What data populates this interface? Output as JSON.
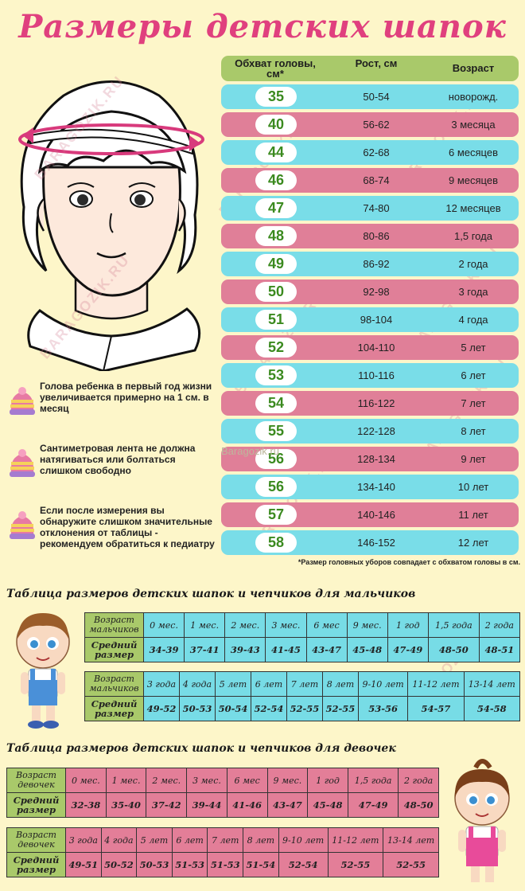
{
  "title": "Размеры детских шапок",
  "main_table": {
    "headers": {
      "girth": "Обхват головы, см*",
      "height": "Рост, см",
      "age": "Возраст"
    },
    "rows": [
      {
        "girth": "35",
        "height": "50-54",
        "age": "новорожд."
      },
      {
        "girth": "40",
        "height": "56-62",
        "age": "3 месяца"
      },
      {
        "girth": "44",
        "height": "62-68",
        "age": "6 месяцев"
      },
      {
        "girth": "46",
        "height": "68-74",
        "age": "9 месяцев"
      },
      {
        "girth": "47",
        "height": "74-80",
        "age": "12 месяцев"
      },
      {
        "girth": "48",
        "height": "80-86",
        "age": "1,5 года"
      },
      {
        "girth": "49",
        "height": "86-92",
        "age": "2 года"
      },
      {
        "girth": "50",
        "height": "92-98",
        "age": "3 года"
      },
      {
        "girth": "51",
        "height": "98-104",
        "age": "4 года"
      },
      {
        "girth": "52",
        "height": "104-110",
        "age": "5 лет"
      },
      {
        "girth": "53",
        "height": "110-116",
        "age": "6 лет"
      },
      {
        "girth": "54",
        "height": "116-122",
        "age": "7 лет"
      },
      {
        "girth": "55",
        "height": "122-128",
        "age": "8 лет"
      },
      {
        "girth": "56",
        "height": "128-134",
        "age": "9 лет"
      },
      {
        "girth": "56",
        "height": "134-140",
        "age": "10 лет"
      },
      {
        "girth": "57",
        "height": "140-146",
        "age": "11 лет"
      },
      {
        "girth": "58",
        "height": "146-152",
        "age": "12 лет"
      }
    ],
    "footnote": "*Размер головных уборов совпадает с обхватом головы в см."
  },
  "watermark": "Baragozik.ru",
  "watermark_diag": "BARAGOZIK.RU",
  "tips": [
    "Голова ребенка в первый год жизни увеличивается примерно на 1 см. в месяц",
    "Сантиметровая лента не должна натягиваться или болтаться слишком свободно",
    "Если после измерения вы обнаружите слишком значительные отклонения от таблицы - рекомендуем обратиться к педиатру"
  ],
  "boys": {
    "title": "Таблица размеров детских шапок и чепчиков для мальчиков",
    "age_label": "Возраст мальчиков",
    "size_label": "Средний размер",
    "table1": {
      "ages": [
        "0 мес.",
        "1 мес.",
        "2 мес.",
        "3 мес.",
        "6 мес",
        "9 мес.",
        "1 год",
        "1,5 года",
        "2 года"
      ],
      "sizes": [
        "34-39",
        "37-41",
        "39-43",
        "41-45",
        "43-47",
        "45-48",
        "47-49",
        "48-50",
        "48-51"
      ]
    },
    "table2": {
      "ages": [
        "3 года",
        "4 года",
        "5 лет",
        "6 лет",
        "7 лет",
        "8 лет",
        "9-10 лет",
        "11-12 лет",
        "13-14 лет"
      ],
      "sizes": [
        "49-52",
        "50-53",
        "50-54",
        "52-54",
        "52-55",
        "52-55",
        "53-56",
        "54-57",
        "54-58"
      ]
    }
  },
  "girls": {
    "title": "Таблица размеров детских шапок и чепчиков для девочек",
    "age_label": "Возраст девочек",
    "size_label": "Средний размер",
    "table1": {
      "ages": [
        "0 мес.",
        "1 мес.",
        "2 мес.",
        "3 мес.",
        "6 мес",
        "9 мес.",
        "1 год",
        "1,5 года",
        "2 года"
      ],
      "sizes": [
        "32-38",
        "35-40",
        "37-42",
        "39-44",
        "41-46",
        "43-47",
        "45-48",
        "47-49",
        "48-50"
      ]
    },
    "table2": {
      "ages": [
        "3 года",
        "4 года",
        "5 лет",
        "6 лет",
        "7 лет",
        "8 лет",
        "9-10 лет",
        "11-12 лет",
        "13-14 лет"
      ],
      "sizes": [
        "49-51",
        "50-52",
        "50-53",
        "51-53",
        "51-53",
        "51-54",
        "52-54",
        "52-55",
        "52-55"
      ]
    }
  },
  "colors": {
    "title": "#e0407e",
    "cyan_row": "#79dde8",
    "pink_row": "#e07f98",
    "header_green": "#a9c96a",
    "girth_text": "#3b8a1f"
  }
}
